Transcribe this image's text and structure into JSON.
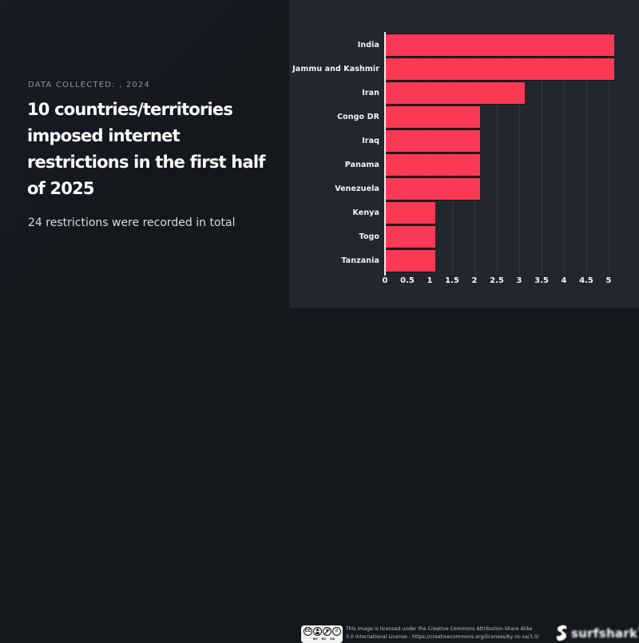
{
  "panel": {
    "eyebrow": "DATA COLLECTED: , 2024",
    "title_lines": [
      "10 countries/territories",
      "imposed internet",
      "restrictions in the first half",
      "of 2025"
    ],
    "subtitle": "24 restrictions were recorded in total"
  },
  "chart_data": {
    "type": "bar",
    "orientation": "horizontal",
    "title": "10 countries/territories imposed internet restrictions in the first half of 2025",
    "subtitle": "24 restrictions were recorded in total",
    "categories": [
      "India",
      "Jammu and Kashmir",
      "Iran",
      "Congo DR",
      "Iraq",
      "Panama",
      "Venezuela",
      "Kenya",
      "Togo",
      "Tanzania"
    ],
    "values": [
      5,
      5,
      3,
      2,
      2,
      2,
      2,
      1,
      1,
      1
    ],
    "total": 24,
    "xlabel": "",
    "ylabel": "",
    "xlim": [
      0,
      5
    ],
    "xticks": [
      0,
      0.5,
      1,
      1.5,
      2,
      2.5,
      3,
      3.5,
      4,
      4.5,
      5
    ],
    "xtick_labels": [
      "0",
      "0.5",
      "1",
      "1.5",
      "2",
      "2.5",
      "3",
      "3.5",
      "4",
      "4.5",
      "5"
    ],
    "grid": true,
    "legend": false,
    "bar_color": "#fa3a54",
    "panel_color": "#22262d"
  },
  "footer": {
    "license_line1": "This image is licensed under the Creative Commons Attribution-Share Alike",
    "license_line2": "3.0 International License - https://creativecommons.org/licenses/by-nc-sa/3.0/",
    "cc_badge": {
      "cc_label": "CC",
      "sublabels": [
        "BY",
        "NC",
        "SA"
      ],
      "nc_glyph": "$",
      "sa_glyph": "↺"
    },
    "brand": "surfshark",
    "registered_mark": "®"
  },
  "colors": {
    "background": "#14171c",
    "chart_panel": "#22262d",
    "bar": "#fa3a54",
    "axis": "#eef0f2",
    "title_text": "#ffffff",
    "muted_text": "#8e949b"
  }
}
